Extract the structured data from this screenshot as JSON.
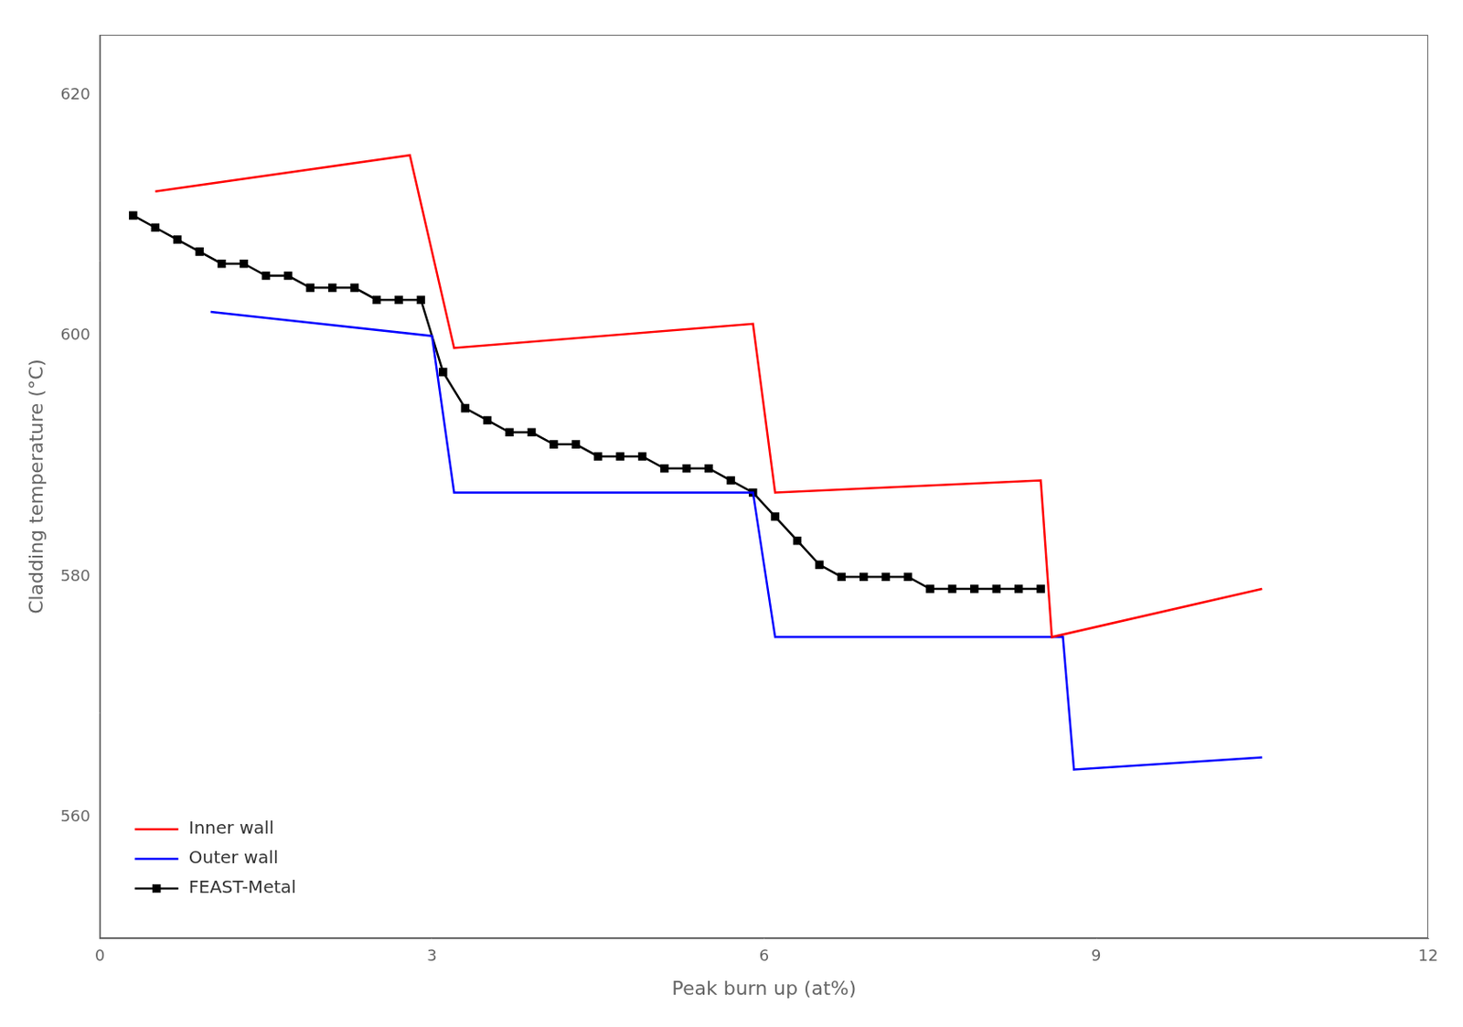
{
  "chart_data": {
    "type": "line",
    "xlabel": "Peak burn up (at%)",
    "ylabel": "Cladding temperature (°C)",
    "xlim": [
      0,
      12
    ],
    "ylim": [
      550,
      625
    ],
    "xticks": [
      0,
      3,
      6,
      9,
      12
    ],
    "yticks": [
      560,
      580,
      600,
      620
    ],
    "grid": false,
    "legend": "lower left",
    "series": [
      {
        "name": "Inner wall",
        "color": "#ff0000",
        "marker": "none",
        "line_style": "solid",
        "x": [
          0.5,
          2.8,
          3.2,
          5.9,
          6.1,
          8.5,
          8.6,
          10.5
        ],
        "values": [
          612,
          615,
          599,
          601,
          587,
          588,
          575,
          579
        ]
      },
      {
        "name": "Outer wall",
        "color": "#0000ff",
        "marker": "none",
        "line_style": "solid",
        "x": [
          1.0,
          3.0,
          3.2,
          5.9,
          6.1,
          8.7,
          8.8,
          10.5
        ],
        "values": [
          602,
          600,
          587,
          587,
          575,
          575,
          564,
          565
        ]
      },
      {
        "name": "FEAST-Metal",
        "color": "#000000",
        "marker": "square",
        "line_style": "solid",
        "x": [
          0.3,
          0.5,
          0.7,
          0.9,
          1.1,
          1.3,
          1.5,
          1.7,
          1.9,
          2.1,
          2.3,
          2.5,
          2.7,
          2.9,
          3.1,
          3.3,
          3.5,
          3.7,
          3.9,
          4.1,
          4.3,
          4.5,
          4.7,
          4.9,
          5.1,
          5.3,
          5.5,
          5.7,
          5.9,
          6.1,
          6.3,
          6.5,
          6.7,
          6.9,
          7.1,
          7.3,
          7.5,
          7.7,
          7.9,
          8.1,
          8.3,
          8.5
        ],
        "values": [
          610,
          609,
          608,
          607,
          606,
          606,
          605,
          605,
          604,
          604,
          604,
          603,
          603,
          603,
          597,
          594,
          593,
          592,
          592,
          591,
          591,
          590,
          590,
          590,
          589,
          589,
          589,
          588,
          587,
          585,
          583,
          581,
          580,
          580,
          580,
          580,
          579,
          579,
          579,
          579,
          579,
          579
        ]
      }
    ]
  }
}
